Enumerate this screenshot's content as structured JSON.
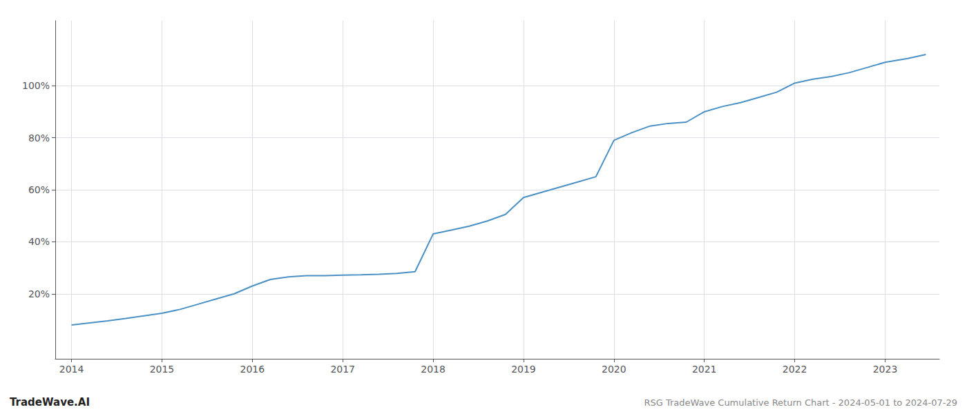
{
  "chart_data": {
    "type": "line",
    "annotations": [
      "TradeWave.AI",
      "RSG TradeWave Cumulative Return Chart - 2024-05-01 to 2024-07-29"
    ],
    "x": [
      2014.0,
      2014.2,
      2014.4,
      2014.6,
      2014.8,
      2015.0,
      2015.2,
      2015.4,
      2015.6,
      2015.8,
      2016.0,
      2016.2,
      2016.4,
      2016.6,
      2016.8,
      2017.0,
      2017.2,
      2017.4,
      2017.6,
      2017.8,
      2018.0,
      2018.2,
      2018.4,
      2018.6,
      2018.8,
      2019.0,
      2019.2,
      2019.4,
      2019.6,
      2019.8,
      2020.0,
      2020.2,
      2020.4,
      2020.6,
      2020.8,
      2021.0,
      2021.2,
      2021.4,
      2021.6,
      2021.8,
      2022.0,
      2022.2,
      2022.4,
      2022.6,
      2022.8,
      2023.0,
      2023.25,
      2023.45
    ],
    "values": [
      8.0,
      8.8,
      9.6,
      10.5,
      11.5,
      12.5,
      14.0,
      16.0,
      18.0,
      20.0,
      23.0,
      25.5,
      26.5,
      27.0,
      27.0,
      27.2,
      27.3,
      27.5,
      27.8,
      28.5,
      43.0,
      44.5,
      46.0,
      48.0,
      50.5,
      57.0,
      59.0,
      61.0,
      63.0,
      65.0,
      79.0,
      82.0,
      84.5,
      85.5,
      86.0,
      90.0,
      92.0,
      93.5,
      95.5,
      97.5,
      101.0,
      102.5,
      103.5,
      105.0,
      107.0,
      109.0,
      110.5,
      112.0
    ],
    "color": "#4a90c4",
    "xlim": [
      2013.82,
      2023.6
    ],
    "xticks": [
      2014,
      2015,
      2016,
      2017,
      2018,
      2019,
      2020,
      2021,
      2022,
      2023
    ],
    "ylim": [
      -5,
      125
    ],
    "yticks": [
      {
        "value": 20,
        "label": "20%"
      },
      {
        "value": 40,
        "label": "40%"
      },
      {
        "value": 60,
        "label": "60%"
      },
      {
        "value": 80,
        "label": "80%"
      },
      {
        "value": 100,
        "label": "100%"
      }
    ],
    "grid": true
  }
}
